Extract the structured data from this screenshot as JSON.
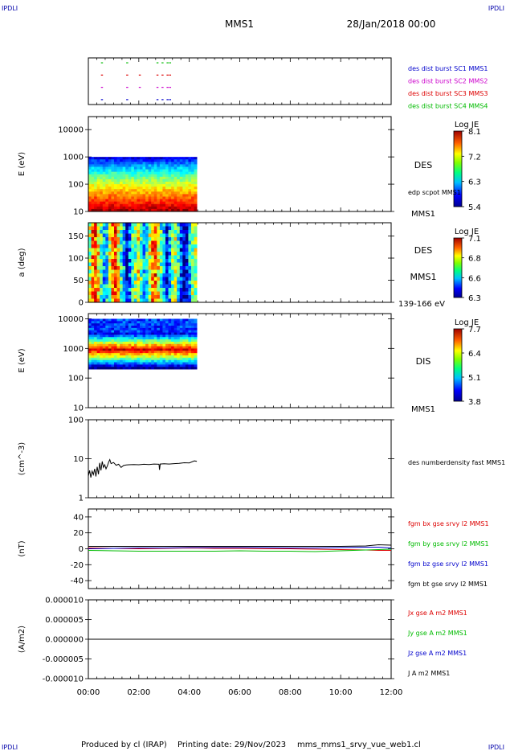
{
  "header": {
    "mark_left": "IPDLI",
    "mark_right": "IPDLI",
    "spacecraft": "MMS1",
    "date": "28/Jan/2018 00:00"
  },
  "footer": {
    "credit": "Produced by cl (IRAP)",
    "printing": "Printing date: 29/Nov/2023",
    "product": "mms_mms1_srvy_vue_web1.cl",
    "mark_left": "IPDLI",
    "mark_right": "IPDLI"
  },
  "time_axis": {
    "range_hours": [
      0,
      12
    ],
    "ticks": [
      "00:00",
      "02:00",
      "04:00",
      "06:00",
      "08:00",
      "10:00",
      "12:00"
    ],
    "tick_hours": [
      0,
      2,
      4,
      6,
      8,
      10,
      12
    ]
  },
  "colors": {
    "red": "#dd0000",
    "green": "#00bb00",
    "blue": "#0000cc",
    "magenta": "#cc00cc",
    "black": "#000000"
  },
  "chart_data": [
    {
      "id": "burst",
      "type": "scatter",
      "yticks": [
        "1",
        "2",
        "3",
        "4"
      ],
      "ylim": [
        0.6,
        4.4
      ],
      "series": [
        {
          "name": "des dist burst SC1 MMS1",
          "y": 1,
          "color": "#0000cc",
          "x": [
            0.5,
            1.5,
            2.7,
            2.9,
            3.1,
            3.2
          ]
        },
        {
          "name": "des dist burst SC2 MMS2",
          "y": 2,
          "color": "#cc00cc",
          "x": [
            0.5,
            1.5,
            2.0,
            2.7,
            2.9,
            3.1,
            3.2
          ]
        },
        {
          "name": "des dist burst SC3 MMS3",
          "y": 3,
          "color": "#dd0000",
          "x": [
            0.5,
            1.5,
            2.0,
            2.7,
            2.9,
            3.1,
            3.2
          ]
        },
        {
          "name": "des dist burst SC4 MMS4",
          "y": 4,
          "color": "#00bb00",
          "x": [
            0.5,
            1.5,
            2.7,
            2.9,
            3.1,
            3.2
          ]
        }
      ]
    },
    {
      "id": "des_energy",
      "type": "heatmap",
      "ylabel": "E (eV)",
      "yscale": "log",
      "ylim": [
        10,
        30000
      ],
      "yticks": [
        "10",
        "100",
        "1000",
        "10000"
      ],
      "ytick_values": [
        10,
        100,
        1000,
        10000
      ],
      "time_range_hours": [
        0,
        4.3
      ],
      "value_range": [
        10,
        1000
      ],
      "labels": [
        "DES",
        "edp scpot MMS1",
        "MMS1"
      ],
      "colorbar": {
        "title": "Log JE",
        "ticks": [
          "8.1",
          "7.2",
          "6.3",
          "5.4"
        ],
        "range": [
          5.4,
          8.1
        ]
      }
    },
    {
      "id": "des_pitch",
      "type": "heatmap",
      "ylabel": "a (deg)",
      "ylim": [
        0,
        180
      ],
      "yticks": [
        "0",
        "50",
        "100",
        "150"
      ],
      "ytick_values": [
        0,
        50,
        100,
        150
      ],
      "time_range_hours": [
        0,
        4.3
      ],
      "labels": [
        "DES",
        "MMS1",
        "139-166 eV"
      ],
      "colorbar": {
        "title": "Log JE",
        "ticks": [
          "7.1",
          "6.8",
          "6.6",
          "6.3"
        ],
        "range": [
          6.3,
          7.1
        ]
      }
    },
    {
      "id": "dis_energy",
      "type": "heatmap",
      "ylabel": "E (eV)",
      "yscale": "log",
      "ylim": [
        10,
        15000
      ],
      "yticks": [
        "10",
        "100",
        "1000",
        "10000"
      ],
      "ytick_values": [
        10,
        100,
        1000,
        10000
      ],
      "time_range_hours": [
        0,
        4.3
      ],
      "value_range": [
        200,
        10000
      ],
      "labels": [
        "DIS",
        "MMS1"
      ],
      "colorbar": {
        "title": "Log JE",
        "ticks": [
          "7.7",
          "6.4",
          "5.1",
          "3.8"
        ],
        "range": [
          3.8,
          7.7
        ]
      }
    },
    {
      "id": "density",
      "type": "line",
      "ylabel": "(cm^-3)",
      "yscale": "log",
      "ylim": [
        1,
        100
      ],
      "yticks": [
        "1",
        "10",
        "100"
      ],
      "ytick_values": [
        1,
        10,
        100
      ],
      "series": [
        {
          "name": "des numberdensity fast MMS1",
          "color": "#000000",
          "x": [
            0.0,
            0.05,
            0.1,
            0.15,
            0.2,
            0.25,
            0.3,
            0.35,
            0.4,
            0.45,
            0.5,
            0.55,
            0.6,
            0.65,
            0.7,
            0.75,
            0.8,
            0.85,
            0.9,
            1.0,
            1.1,
            1.2,
            1.3,
            1.4,
            1.5,
            1.6,
            1.8,
            2.0,
            2.2,
            2.4,
            2.6,
            2.8,
            2.82,
            2.85,
            3.0,
            3.2,
            3.4,
            3.6,
            3.8,
            4.0,
            4.2,
            4.3
          ],
          "y": [
            3.6,
            5.0,
            3.3,
            4.8,
            3.9,
            5.5,
            3.5,
            6.2,
            4.0,
            7.8,
            5.0,
            8.5,
            6.0,
            7.0,
            5.5,
            6.5,
            8.0,
            9.5,
            7.5,
            8.0,
            6.8,
            7.2,
            6.0,
            6.7,
            6.9,
            7.0,
            7.1,
            7.0,
            7.2,
            7.1,
            7.3,
            7.2,
            5.2,
            7.3,
            7.4,
            7.3,
            7.5,
            7.6,
            7.9,
            7.8,
            8.8,
            8.6
          ]
        }
      ]
    },
    {
      "id": "fgm",
      "type": "line",
      "ylabel": "(nT)",
      "ylim": [
        -50,
        50
      ],
      "yticks": [
        "-40",
        "-20",
        "0",
        "20",
        "40"
      ],
      "ytick_values": [
        -40,
        -20,
        0,
        20,
        40
      ],
      "series": [
        {
          "name": "fgm bx gse srvy l2 MMS1",
          "color": "#dd0000",
          "x": [
            0,
            1,
            2,
            3,
            4,
            5,
            6,
            7,
            8,
            9,
            10,
            11,
            11.5,
            12
          ],
          "y": [
            1,
            0.5,
            0,
            0.5,
            1,
            0.5,
            0.5,
            0,
            0,
            -0.5,
            -1,
            -1.5,
            -2,
            -2
          ]
        },
        {
          "name": "fgm by gse srvy l2 MMS1",
          "color": "#00bb00",
          "x": [
            0,
            1,
            2,
            3,
            4,
            5,
            6,
            7,
            8,
            9,
            10,
            11,
            11.5,
            12
          ],
          "y": [
            -2,
            -2.5,
            -3,
            -3,
            -3,
            -3,
            -2.5,
            -3,
            -3,
            -3.5,
            -2.5,
            -1.5,
            -1,
            -0.5
          ]
        },
        {
          "name": "fgm bz gse srvy l2 MMS1",
          "color": "#0000cc",
          "x": [
            0,
            1,
            2,
            3,
            4,
            5,
            6,
            7,
            8,
            9,
            10,
            11,
            11.5,
            12
          ],
          "y": [
            0,
            0.5,
            1,
            1,
            1.5,
            1.5,
            1.5,
            1.5,
            1,
            1,
            1.5,
            2,
            2,
            1
          ]
        },
        {
          "name": "fgm bt gse srvy l2 MMS1",
          "color": "#000000",
          "x": [
            0,
            1,
            2,
            3,
            4,
            5,
            6,
            7,
            8,
            9,
            10,
            11,
            11.5,
            12
          ],
          "y": [
            3,
            3,
            3,
            3,
            3,
            3,
            3,
            3,
            3,
            3,
            3,
            3.5,
            5,
            4.5
          ]
        }
      ]
    },
    {
      "id": "current",
      "type": "line",
      "ylabel": "(A/m2)",
      "ylim": [
        -1e-05,
        1e-05
      ],
      "yticks": [
        "-0.000010",
        "-0.000005",
        "0.000000",
        "0.000005",
        "0.000010"
      ],
      "ytick_values": [
        -1e-05,
        -5e-06,
        0,
        5e-06,
        1e-05
      ],
      "series": [
        {
          "name": "Jx gse A m2 MMS1",
          "color": "#dd0000",
          "x": [
            0,
            12
          ],
          "y": [
            0,
            0
          ]
        },
        {
          "name": "Jy gse A m2 MMS1",
          "color": "#00bb00",
          "x": [
            0,
            12
          ],
          "y": [
            0,
            0
          ]
        },
        {
          "name": "Jz gse A m2 MMS1",
          "color": "#0000cc",
          "x": [
            0,
            12
          ],
          "y": [
            0,
            0
          ]
        },
        {
          "name": "J A m2 MMS1",
          "color": "#000000",
          "x": [
            0,
            12
          ],
          "y": [
            0,
            0
          ]
        }
      ]
    }
  ]
}
